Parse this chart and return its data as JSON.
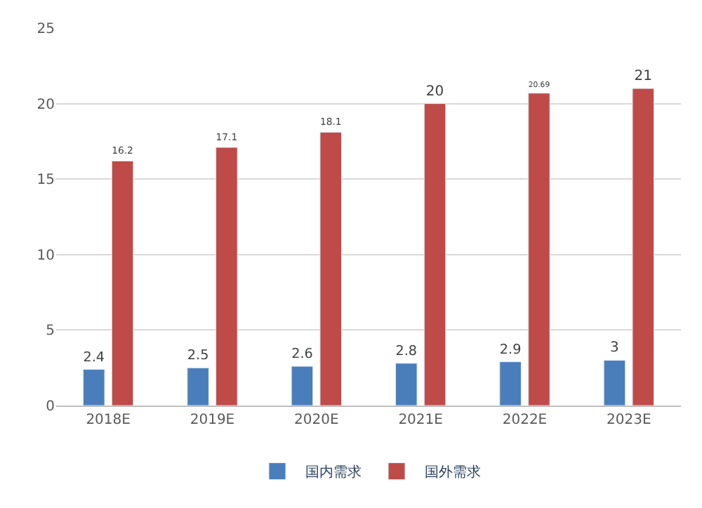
{
  "chart_data": {
    "type": "bar",
    "categories": [
      "2018E",
      "2019E",
      "2020E",
      "2021E",
      "2022E",
      "2023E"
    ],
    "series": [
      {
        "name": "国内需求",
        "color": "#4a7ebb",
        "values": [
          2.4,
          2.5,
          2.6,
          2.8,
          2.9,
          3
        ]
      },
      {
        "name": "国外需求",
        "color": "#be4b48",
        "values": [
          16.2,
          17.1,
          18.1,
          20,
          20.69,
          21
        ]
      }
    ],
    "ylim": [
      0,
      25
    ],
    "yticks": [
      0,
      5,
      10,
      15,
      20,
      25
    ],
    "grid": "y",
    "legend": "bottom",
    "data_labels": true
  }
}
